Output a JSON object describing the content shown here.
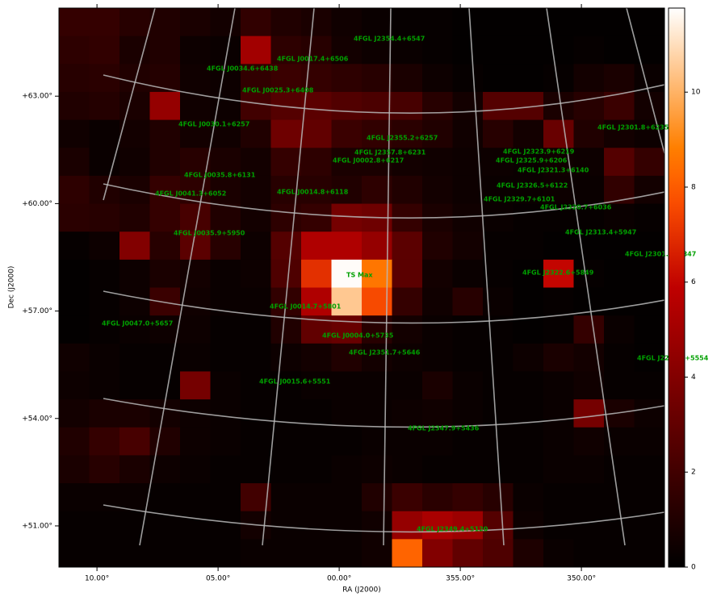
{
  "chart_data": {
    "type": "heatmap",
    "colormap": "gist_heat",
    "xlabel": "RA (J2000)",
    "ylabel": "Dec (J2000)",
    "xlim": [
      11.57,
      346.57
    ],
    "xticks": [
      {
        "value": 10,
        "label": "10.00°"
      },
      {
        "value": 5,
        "label": "05.00°"
      },
      {
        "value": 0,
        "label": "00.00°"
      },
      {
        "value": 355,
        "label": "355.00°"
      },
      {
        "value": 350,
        "label": "350.00°"
      }
    ],
    "ylim": [
      65.46,
      49.85
    ],
    "yticks": [
      {
        "value": 63,
        "label": "+63.00°"
      },
      {
        "value": 60,
        "label": "+60.00°"
      },
      {
        "value": 57,
        "label": "+57.00°"
      },
      {
        "value": 54,
        "label": "+54.00°"
      },
      {
        "value": 51,
        "label": "+51.00°"
      }
    ],
    "clim": [
      0,
      11.77
    ],
    "cticks": [
      0,
      2,
      4,
      6,
      8,
      10
    ],
    "annotation_color": "#00a000",
    "z": [
      [
        1.6,
        1.6,
        1.2,
        1.0,
        0.8,
        0.6,
        1.5,
        1.0,
        0.8,
        0.5,
        0.3,
        0.2,
        0.2,
        0.1,
        0.1,
        0.1,
        0.1,
        0.1,
        0.1,
        0.1
      ],
      [
        1.4,
        1.5,
        0.8,
        1.0,
        0.4,
        0.3,
        5.0,
        1.4,
        1.2,
        0.6,
        0.4,
        0.3,
        0.2,
        0.1,
        0.1,
        0.1,
        0.1,
        0.2,
        0.1,
        0.1
      ],
      [
        1.2,
        1.3,
        1.0,
        1.1,
        0.5,
        0.4,
        1.5,
        1.8,
        1.6,
        1.4,
        1.2,
        0.8,
        0.4,
        0.2,
        0.1,
        0.1,
        0.2,
        0.6,
        0.8,
        0.3
      ],
      [
        1.0,
        1.1,
        0.8,
        4.6,
        0.5,
        0.4,
        2.0,
        2.6,
        2.8,
        2.5,
        2.3,
        2.2,
        1.2,
        0.6,
        2.6,
        2.6,
        0.8,
        1.2,
        1.8,
        0.6
      ],
      [
        0.5,
        0.3,
        0.6,
        1.0,
        0.6,
        0.5,
        1.0,
        3.4,
        3.0,
        1.8,
        1.5,
        1.3,
        1.0,
        0.5,
        1.2,
        0.6,
        3.2,
        1.0,
        0.6,
        0.4
      ],
      [
        0.8,
        0.3,
        0.5,
        1.0,
        1.2,
        0.8,
        0.6,
        1.6,
        1.4,
        0.8,
        0.8,
        0.6,
        0.5,
        0.4,
        0.4,
        0.3,
        0.5,
        0.4,
        2.6,
        1.6
      ],
      [
        1.4,
        1.0,
        0.8,
        1.6,
        1.4,
        0.8,
        0.6,
        1.2,
        1.2,
        1.0,
        1.4,
        1.0,
        0.6,
        0.4,
        0.3,
        0.3,
        0.4,
        0.3,
        1.5,
        0.6
      ],
      [
        1.3,
        1.2,
        1.0,
        1.6,
        2.2,
        1.0,
        0.6,
        1.4,
        1.6,
        3.6,
        3.4,
        1.6,
        0.8,
        0.5,
        0.3,
        0.2,
        0.2,
        0.2,
        0.3,
        0.2
      ],
      [
        0.2,
        0.4,
        4.0,
        1.2,
        2.8,
        1.2,
        0.4,
        2.6,
        5.4,
        5.4,
        4.6,
        2.8,
        1.0,
        0.6,
        0.2,
        0.2,
        0.1,
        0.1,
        0.1,
        0.1
      ],
      [
        0.1,
        0.2,
        0.4,
        0.8,
        0.6,
        0.3,
        0.4,
        2.4,
        7.0,
        11.7,
        8.6,
        2.8,
        0.6,
        0.3,
        0.2,
        0.1,
        6.0,
        0.2,
        0.1,
        0.1
      ],
      [
        0.1,
        0.2,
        0.4,
        1.8,
        0.5,
        0.3,
        0.3,
        1.5,
        5.4,
        10.5,
        7.6,
        1.6,
        0.5,
        1.2,
        0.3,
        0.1,
        0.2,
        0.1,
        0.1,
        0.1
      ],
      [
        0.1,
        0.2,
        0.3,
        0.4,
        0.4,
        0.2,
        0.2,
        1.0,
        3.0,
        3.2,
        1.2,
        0.6,
        0.3,
        0.2,
        0.2,
        0.1,
        0.2,
        1.6,
        0.3,
        0.1
      ],
      [
        0.5,
        0.3,
        0.2,
        0.2,
        0.3,
        0.2,
        0.2,
        0.4,
        0.6,
        1.0,
        0.6,
        0.4,
        0.3,
        0.2,
        0.2,
        0.4,
        0.8,
        0.6,
        0.2,
        0.1
      ],
      [
        0.4,
        0.3,
        0.2,
        0.2,
        3.6,
        0.3,
        0.2,
        0.2,
        0.3,
        0.3,
        0.3,
        0.3,
        0.8,
        0.3,
        0.2,
        0.2,
        0.3,
        0.5,
        0.2,
        0.2
      ],
      [
        0.6,
        0.8,
        0.8,
        0.6,
        0.4,
        0.3,
        0.2,
        0.2,
        0.2,
        0.3,
        0.3,
        0.4,
        0.5,
        0.3,
        0.2,
        0.2,
        0.3,
        3.6,
        0.8,
        0.4
      ],
      [
        1.0,
        1.6,
        2.2,
        1.0,
        0.4,
        0.3,
        0.2,
        0.2,
        0.2,
        0.2,
        0.3,
        0.3,
        0.3,
        0.2,
        0.2,
        0.2,
        0.3,
        0.5,
        0.3,
        0.3
      ],
      [
        0.8,
        1.2,
        0.8,
        0.4,
        0.3,
        0.2,
        0.2,
        0.2,
        0.2,
        0.3,
        0.4,
        0.3,
        0.2,
        0.2,
        0.2,
        0.2,
        0.3,
        0.3,
        0.2,
        0.2
      ],
      [
        0.3,
        0.3,
        0.3,
        0.2,
        0.2,
        0.2,
        2.0,
        0.3,
        0.3,
        0.3,
        1.0,
        1.8,
        1.3,
        1.6,
        1.2,
        0.3,
        0.2,
        0.2,
        0.2,
        0.2
      ],
      [
        0.2,
        0.2,
        0.2,
        0.2,
        0.2,
        0.2,
        0.6,
        0.3,
        0.3,
        0.3,
        0.5,
        4.6,
        5.2,
        4.8,
        2.6,
        0.4,
        0.2,
        0.2,
        0.2,
        0.2
      ],
      [
        0.2,
        0.2,
        0.2,
        0.2,
        0.2,
        0.2,
        0.3,
        0.3,
        0.3,
        0.3,
        0.5,
        8.2,
        4.0,
        3.0,
        2.4,
        0.9,
        0.3,
        0.2,
        0.2,
        0.2
      ]
    ],
    "annotations": [
      "4FGL J2354.4+6547",
      "4FGL J0017.4+6506",
      "4FGL J0034.6+6438",
      "4FGL J0025.3+6408",
      "4FGL J0030.1+6257",
      "4FGL J2355.2+6257",
      "4FGL J2301.8+6235",
      "4FGL J2323.9+6219",
      "4FGL J2357.8+6231",
      "4FGL J2325.9+6206",
      "4FGL J0002.8+6217",
      "4FGL J2321.3+6140",
      "4FGL J0035.8+6131",
      "4FGL J2326.5+6122",
      "4FGL J0041.3+6052",
      "4FGL J0014.8+6118",
      "4FGL J2329.7+6101",
      "4FGL J2320.7+6036",
      "4FGL J0035.9+5950",
      "4FGL J2313.4+5947",
      "4FGL J2301.0+5847",
      "TS Max",
      "4FGL J2322.6+5849",
      "4FGL J0014.7+5801",
      "4FGL J0047.0+5657",
      "4FGL J0004.0+5735",
      "4FGL J2351.7+5646",
      "4FGL J2258.4+5554",
      "4FGL J0015.6+5551",
      "4FGL J2347.9+5436",
      "4FGL J2349.4+5120"
    ]
  }
}
